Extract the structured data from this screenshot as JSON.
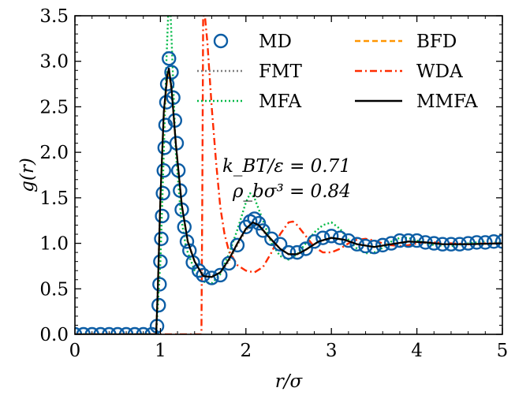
{
  "chart_data": {
    "type": "line",
    "xlabel": "r/σ",
    "ylabel": "g(r)",
    "xlim": [
      0,
      5
    ],
    "ylim": [
      0,
      3.5
    ],
    "x_ticks": [
      "0",
      "1",
      "2",
      "3",
      "4",
      "5"
    ],
    "y_ticks": [
      "0.0",
      "0.5",
      "1.0",
      "1.5",
      "2.0",
      "2.5",
      "3.0",
      "3.5"
    ],
    "grid": false,
    "legend_position": "top-right",
    "annotations": [
      "k_BT/ε = 0.71",
      "ρ_bσ³ = 0.84"
    ],
    "series": [
      {
        "name": "MD",
        "style": "markers",
        "color": "#0C5DA5",
        "points": [
          [
            0.0,
            0.0
          ],
          [
            0.1,
            0.0
          ],
          [
            0.2,
            0.0
          ],
          [
            0.3,
            0.0
          ],
          [
            0.4,
            0.0
          ],
          [
            0.5,
            0.0
          ],
          [
            0.6,
            0.0
          ],
          [
            0.7,
            0.0
          ],
          [
            0.8,
            0.0
          ],
          [
            0.9,
            0.0
          ],
          [
            0.96,
            0.09
          ],
          [
            0.98,
            0.32
          ],
          [
            0.99,
            0.55
          ],
          [
            1.0,
            0.8
          ],
          [
            1.01,
            1.05
          ],
          [
            1.02,
            1.3
          ],
          [
            1.03,
            1.55
          ],
          [
            1.04,
            1.8
          ],
          [
            1.05,
            2.05
          ],
          [
            1.06,
            2.3
          ],
          [
            1.07,
            2.55
          ],
          [
            1.08,
            2.75
          ],
          [
            1.1,
            3.03
          ],
          [
            1.13,
            2.88
          ],
          [
            1.15,
            2.6
          ],
          [
            1.17,
            2.35
          ],
          [
            1.19,
            2.1
          ],
          [
            1.21,
            1.8
          ],
          [
            1.23,
            1.58
          ],
          [
            1.25,
            1.37
          ],
          [
            1.28,
            1.18
          ],
          [
            1.31,
            1.02
          ],
          [
            1.34,
            0.92
          ],
          [
            1.38,
            0.79
          ],
          [
            1.45,
            0.7
          ],
          [
            1.5,
            0.65
          ],
          [
            1.6,
            0.62
          ],
          [
            1.7,
            0.65
          ],
          [
            1.8,
            0.78
          ],
          [
            1.9,
            0.98
          ],
          [
            2.0,
            1.18
          ],
          [
            2.05,
            1.24
          ],
          [
            2.1,
            1.27
          ],
          [
            2.15,
            1.22
          ],
          [
            2.2,
            1.14
          ],
          [
            2.3,
            1.05
          ],
          [
            2.4,
            0.99
          ],
          [
            2.5,
            0.9
          ],
          [
            2.6,
            0.9
          ],
          [
            2.7,
            0.94
          ],
          [
            2.8,
            1.02
          ],
          [
            2.9,
            1.06
          ],
          [
            3.0,
            1.08
          ],
          [
            3.1,
            1.06
          ],
          [
            3.2,
            1.03
          ],
          [
            3.3,
            0.99
          ],
          [
            3.4,
            0.97
          ],
          [
            3.5,
            0.96
          ],
          [
            3.6,
            0.98
          ],
          [
            3.7,
            1.0
          ],
          [
            3.8,
            1.03
          ],
          [
            3.9,
            1.03
          ],
          [
            4.0,
            1.03
          ],
          [
            4.1,
            1.01
          ],
          [
            4.2,
            1.0
          ],
          [
            4.3,
            0.99
          ],
          [
            4.4,
            0.99
          ],
          [
            4.5,
            0.99
          ],
          [
            4.6,
            1.0
          ],
          [
            4.7,
            1.01
          ],
          [
            4.8,
            1.01
          ],
          [
            4.9,
            1.02
          ],
          [
            5.0,
            1.02
          ]
        ]
      },
      {
        "name": "FMT",
        "style": "dotted",
        "color": "#7f7f7f",
        "points": [
          [
            0.0,
            0.0
          ],
          [
            0.95,
            0.0
          ],
          [
            0.97,
            0.5
          ],
          [
            1.0,
            1.5
          ],
          [
            1.04,
            2.4
          ],
          [
            1.08,
            2.85
          ],
          [
            1.1,
            2.9
          ],
          [
            1.13,
            2.7
          ],
          [
            1.18,
            2.1
          ],
          [
            1.25,
            1.4
          ],
          [
            1.32,
            1.0
          ],
          [
            1.4,
            0.8
          ],
          [
            1.5,
            0.66
          ],
          [
            1.6,
            0.64
          ],
          [
            1.7,
            0.68
          ],
          [
            1.8,
            0.8
          ],
          [
            1.9,
            0.98
          ],
          [
            2.0,
            1.14
          ],
          [
            2.08,
            1.22
          ],
          [
            2.15,
            1.19
          ],
          [
            2.25,
            1.08
          ],
          [
            2.4,
            0.94
          ],
          [
            2.5,
            0.88
          ],
          [
            2.6,
            0.88
          ],
          [
            2.7,
            0.93
          ],
          [
            2.85,
            1.02
          ],
          [
            3.0,
            1.06
          ],
          [
            3.15,
            1.04
          ],
          [
            3.3,
            0.99
          ],
          [
            3.5,
            0.96
          ],
          [
            3.7,
            0.99
          ],
          [
            3.9,
            1.02
          ],
          [
            4.1,
            1.01
          ],
          [
            4.3,
            0.99
          ],
          [
            4.6,
            0.99
          ],
          [
            5.0,
            1.0
          ]
        ]
      },
      {
        "name": "MFA",
        "style": "dotted",
        "color": "#00B945",
        "points": [
          [
            0.0,
            0.0
          ],
          [
            0.95,
            0.0
          ],
          [
            1.0,
            0.8
          ],
          [
            1.04,
            2.0
          ],
          [
            1.07,
            3.0
          ],
          [
            1.09,
            3.5
          ],
          [
            1.12,
            3.5
          ],
          [
            1.14,
            3.0
          ],
          [
            1.18,
            2.0
          ],
          [
            1.24,
            1.3
          ],
          [
            1.3,
            0.95
          ],
          [
            1.4,
            0.7
          ],
          [
            1.5,
            0.58
          ],
          [
            1.6,
            0.56
          ],
          [
            1.7,
            0.66
          ],
          [
            1.8,
            0.88
          ],
          [
            1.9,
            1.15
          ],
          [
            2.0,
            1.45
          ],
          [
            2.05,
            1.55
          ],
          [
            2.1,
            1.5
          ],
          [
            2.2,
            1.25
          ],
          [
            2.3,
            1.0
          ],
          [
            2.4,
            0.86
          ],
          [
            2.5,
            0.82
          ],
          [
            2.6,
            0.88
          ],
          [
            2.7,
            1.0
          ],
          [
            2.8,
            1.12
          ],
          [
            2.9,
            1.2
          ],
          [
            3.0,
            1.23
          ],
          [
            3.1,
            1.16
          ],
          [
            3.2,
            1.04
          ],
          [
            3.3,
            0.94
          ],
          [
            3.4,
            0.89
          ],
          [
            3.5,
            0.9
          ],
          [
            3.6,
            0.95
          ],
          [
            3.7,
            1.02
          ],
          [
            3.8,
            1.06
          ],
          [
            3.9,
            1.06
          ],
          [
            4.0,
            1.03
          ],
          [
            4.2,
            0.98
          ],
          [
            4.4,
            0.97
          ],
          [
            4.6,
            1.0
          ],
          [
            4.8,
            1.02
          ],
          [
            5.0,
            1.01
          ]
        ]
      },
      {
        "name": "BFD",
        "style": "dashed",
        "color": "#FF9500",
        "points": [
          [
            0.0,
            0.0
          ],
          [
            0.95,
            0.0
          ],
          [
            0.97,
            0.5
          ],
          [
            1.0,
            1.5
          ],
          [
            1.04,
            2.4
          ],
          [
            1.08,
            2.82
          ],
          [
            1.1,
            2.87
          ],
          [
            1.13,
            2.68
          ],
          [
            1.18,
            2.1
          ],
          [
            1.25,
            1.42
          ],
          [
            1.32,
            1.02
          ],
          [
            1.4,
            0.8
          ],
          [
            1.5,
            0.64
          ],
          [
            1.6,
            0.63
          ],
          [
            1.7,
            0.68
          ],
          [
            1.8,
            0.82
          ],
          [
            1.9,
            1.0
          ],
          [
            2.0,
            1.16
          ],
          [
            2.08,
            1.23
          ],
          [
            2.15,
            1.2
          ],
          [
            2.25,
            1.09
          ],
          [
            2.4,
            0.94
          ],
          [
            2.5,
            0.88
          ],
          [
            2.6,
            0.88
          ],
          [
            2.7,
            0.93
          ],
          [
            2.85,
            1.02
          ],
          [
            3.0,
            1.06
          ],
          [
            3.15,
            1.04
          ],
          [
            3.3,
            0.99
          ],
          [
            3.5,
            0.96
          ],
          [
            3.7,
            0.99
          ],
          [
            3.9,
            1.02
          ],
          [
            4.1,
            1.01
          ],
          [
            4.3,
            0.99
          ],
          [
            4.6,
            0.99
          ],
          [
            5.0,
            1.0
          ]
        ]
      },
      {
        "name": "WDA",
        "style": "dashdot",
        "color": "#FF2C00",
        "points": [
          [
            0.0,
            0.0
          ],
          [
            1.48,
            0.0
          ],
          [
            1.49,
            1.5
          ],
          [
            1.5,
            3.5
          ],
          [
            1.52,
            3.5
          ],
          [
            1.55,
            3.2
          ],
          [
            1.6,
            2.5
          ],
          [
            1.65,
            1.9
          ],
          [
            1.7,
            1.4
          ],
          [
            1.75,
            1.1
          ],
          [
            1.8,
            0.92
          ],
          [
            1.9,
            0.76
          ],
          [
            2.0,
            0.7
          ],
          [
            2.1,
            0.68
          ],
          [
            2.2,
            0.74
          ],
          [
            2.3,
            0.9
          ],
          [
            2.4,
            1.1
          ],
          [
            2.5,
            1.23
          ],
          [
            2.55,
            1.24
          ],
          [
            2.6,
            1.2
          ],
          [
            2.7,
            1.08
          ],
          [
            2.8,
            0.96
          ],
          [
            2.9,
            0.9
          ],
          [
            3.0,
            0.9
          ],
          [
            3.1,
            0.94
          ],
          [
            3.2,
            1.0
          ],
          [
            3.3,
            1.04
          ],
          [
            3.4,
            1.05
          ],
          [
            3.5,
            1.03
          ],
          [
            3.6,
            1.0
          ],
          [
            3.7,
            0.98
          ],
          [
            3.8,
            0.97
          ],
          [
            3.9,
            0.98
          ],
          [
            4.0,
            1.0
          ],
          [
            4.1,
            1.01
          ],
          [
            4.2,
            1.01
          ],
          [
            4.4,
            1.0
          ],
          [
            4.6,
            0.99
          ],
          [
            4.8,
            1.0
          ],
          [
            5.0,
            1.0
          ]
        ]
      },
      {
        "name": "MMFA",
        "style": "solid",
        "color": "#000000",
        "points": [
          [
            0.0,
            0.0
          ],
          [
            0.95,
            0.0
          ],
          [
            0.97,
            0.5
          ],
          [
            1.0,
            1.5
          ],
          [
            1.04,
            2.45
          ],
          [
            1.08,
            2.85
          ],
          [
            1.1,
            2.92
          ],
          [
            1.13,
            2.7
          ],
          [
            1.18,
            2.1
          ],
          [
            1.25,
            1.42
          ],
          [
            1.32,
            1.02
          ],
          [
            1.4,
            0.8
          ],
          [
            1.5,
            0.64
          ],
          [
            1.6,
            0.63
          ],
          [
            1.7,
            0.68
          ],
          [
            1.8,
            0.82
          ],
          [
            1.9,
            1.0
          ],
          [
            2.0,
            1.16
          ],
          [
            2.08,
            1.23
          ],
          [
            2.15,
            1.2
          ],
          [
            2.25,
            1.09
          ],
          [
            2.4,
            0.94
          ],
          [
            2.5,
            0.88
          ],
          [
            2.6,
            0.88
          ],
          [
            2.7,
            0.93
          ],
          [
            2.85,
            1.02
          ],
          [
            3.0,
            1.06
          ],
          [
            3.15,
            1.04
          ],
          [
            3.3,
            0.99
          ],
          [
            3.5,
            0.96
          ],
          [
            3.7,
            0.99
          ],
          [
            3.9,
            1.02
          ],
          [
            4.1,
            1.01
          ],
          [
            4.3,
            0.99
          ],
          [
            4.6,
            0.99
          ],
          [
            5.0,
            1.0
          ]
        ]
      }
    ]
  }
}
